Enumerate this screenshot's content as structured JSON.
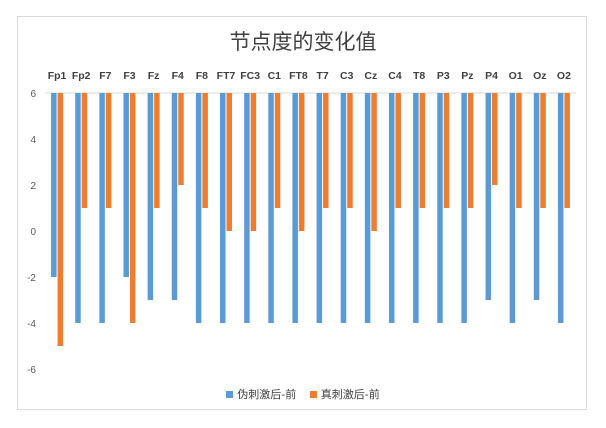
{
  "chart_data": {
    "type": "bar",
    "title": "节点度的变化值",
    "xlabel": "",
    "ylabel": "",
    "categories": [
      "Fp1",
      "Fp2",
      "F7",
      "F3",
      "Fz",
      "F4",
      "F8",
      "FT7",
      "FC3",
      "C1",
      "FT8",
      "T7",
      "C3",
      "Cz",
      "C4",
      "T8",
      "P3",
      "Pz",
      "P4",
      "O1",
      "Oz",
      "O2"
    ],
    "series": [
      {
        "name": "伪刺激后-前",
        "color": "#5b9bd5",
        "values": [
          -2,
          -4,
          -4,
          -2,
          -3,
          -3,
          -4,
          -4,
          -4,
          -4,
          -4,
          -4,
          -4,
          -4,
          -4,
          -4,
          -4,
          -4,
          -3,
          -4,
          -3,
          -4
        ]
      },
      {
        "name": "真刺激后-前",
        "color": "#ed7d31",
        "values": [
          -5,
          1,
          1,
          -4,
          1,
          2,
          1,
          0,
          0,
          1,
          0,
          1,
          1,
          0,
          1,
          1,
          1,
          1,
          2,
          1,
          1,
          1
        ]
      }
    ],
    "ylim": [
      -6,
      6
    ],
    "yticks": [
      6,
      4,
      2,
      0,
      -2,
      -4,
      -6
    ],
    "category_axis_position": "top",
    "legend_position": "bottom",
    "grid": false
  }
}
